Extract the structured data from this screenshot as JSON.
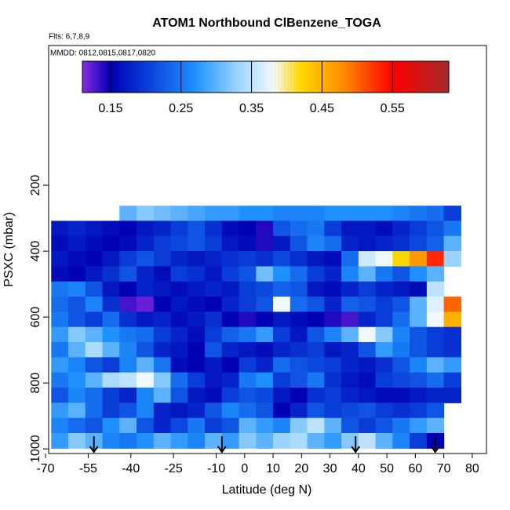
{
  "chart_data": {
    "type": "curtain",
    "title": "ATOM1 Northbound ClBenzene_TOGA",
    "subtitle": "Flts: 6,7,8,9",
    "annotation": "MMDD: 0812,0815,0817,0820",
    "xlabel": "Latitude (deg N)",
    "ylabel": "PSXC (mbar)",
    "xlim": [
      -70,
      85
    ],
    "xticks": [
      -70,
      -55,
      -40,
      -25,
      -10,
      0,
      10,
      20,
      30,
      40,
      50,
      60,
      70,
      80
    ],
    "ylim": [
      1014,
      -224
    ],
    "yticks": [
      200,
      400,
      600,
      800,
      1000
    ],
    "cbar_lim": [
      0.11,
      0.63
    ],
    "cbar_ticks": [
      0.15,
      0.25,
      0.35,
      0.45,
      0.55
    ],
    "colorscale": [
      {
        "value": 0.11,
        "color": "#8a2be2"
      },
      {
        "value": 0.15,
        "color": "#0000b4"
      },
      {
        "value": 0.2,
        "color": "#0a3cd8"
      },
      {
        "value": 0.27,
        "color": "#1e90ff"
      },
      {
        "value": 0.33,
        "color": "#9ad4ff"
      },
      {
        "value": 0.38,
        "color": "#f0f8ff"
      },
      {
        "value": 0.42,
        "color": "#ffd700"
      },
      {
        "value": 0.48,
        "color": "#ff8c00"
      },
      {
        "value": 0.55,
        "color": "#ff0000"
      },
      {
        "value": 0.63,
        "color": "#a52a2a"
      }
    ],
    "arrows": [
      -53,
      -8,
      39,
      67
    ],
    "lat_edges": [
      -68,
      -62,
      -56,
      -50,
      -44,
      -38,
      -32,
      -26,
      -20,
      -14,
      -8,
      -2,
      4,
      10,
      16,
      22,
      28,
      34,
      40,
      46,
      52,
      58,
      64,
      70,
      76
    ],
    "p_edges": [
      262,
      308,
      354,
      400,
      446,
      492,
      538,
      584,
      630,
      676,
      722,
      768,
      814,
      860,
      906,
      952,
      998
    ],
    "z": [
      [
        null,
        null,
        null,
        null,
        0.3,
        0.32,
        0.31,
        0.3,
        0.29,
        0.28,
        0.28,
        0.27,
        0.27,
        0.26,
        0.26,
        0.26,
        0.27,
        0.27,
        0.27,
        0.27,
        0.26,
        0.25,
        0.24,
        0.2
      ],
      [
        0.17,
        0.18,
        0.17,
        0.16,
        0.15,
        0.17,
        0.18,
        0.2,
        0.22,
        0.19,
        0.16,
        0.15,
        0.14,
        0.22,
        0.24,
        0.25,
        0.2,
        0.17,
        0.17,
        0.16,
        0.18,
        0.2,
        0.22,
        0.25
      ],
      [
        0.16,
        0.17,
        0.16,
        0.15,
        0.16,
        0.18,
        0.2,
        0.21,
        0.22,
        0.2,
        0.17,
        0.16,
        0.14,
        0.17,
        0.22,
        0.26,
        0.24,
        0.18,
        0.17,
        0.18,
        0.19,
        0.21,
        0.23,
        0.3
      ],
      [
        0.17,
        0.16,
        0.15,
        0.17,
        0.2,
        0.22,
        0.2,
        0.18,
        0.17,
        0.18,
        0.19,
        0.2,
        0.19,
        0.21,
        0.19,
        0.17,
        0.16,
        0.24,
        0.36,
        0.38,
        0.42,
        0.47,
        0.53,
        0.33
      ],
      [
        0.16,
        0.15,
        0.17,
        0.19,
        0.22,
        0.18,
        0.16,
        0.2,
        0.19,
        0.17,
        0.2,
        0.22,
        0.31,
        0.27,
        0.24,
        0.2,
        0.18,
        0.26,
        0.3,
        0.25,
        0.22,
        0.27,
        0.3,
        null
      ],
      [
        0.25,
        0.26,
        0.22,
        0.17,
        0.15,
        0.18,
        0.17,
        0.16,
        0.17,
        0.18,
        0.17,
        0.2,
        0.21,
        0.23,
        0.22,
        0.17,
        0.16,
        0.18,
        0.2,
        0.18,
        0.17,
        0.16,
        0.35,
        null
      ],
      [
        0.24,
        0.22,
        0.26,
        0.19,
        0.13,
        0.12,
        0.15,
        0.17,
        0.16,
        0.15,
        0.18,
        0.2,
        0.22,
        0.38,
        0.24,
        0.22,
        0.18,
        0.23,
        0.22,
        0.2,
        0.22,
        0.3,
        0.37,
        0.5
      ],
      [
        0.25,
        0.22,
        0.2,
        0.24,
        0.19,
        0.17,
        0.18,
        0.16,
        0.17,
        0.19,
        0.15,
        0.14,
        0.15,
        0.17,
        0.16,
        0.15,
        0.14,
        0.13,
        0.18,
        0.2,
        0.24,
        0.3,
        0.38,
        0.45
      ],
      [
        0.28,
        0.32,
        0.3,
        0.27,
        0.25,
        0.24,
        0.2,
        0.18,
        0.16,
        0.2,
        0.23,
        0.25,
        0.28,
        0.2,
        0.17,
        0.22,
        0.26,
        0.3,
        0.38,
        0.32,
        0.26,
        0.22,
        0.2,
        0.19
      ],
      [
        0.25,
        0.3,
        0.34,
        0.3,
        0.26,
        0.22,
        0.18,
        0.17,
        0.15,
        0.22,
        0.18,
        0.17,
        0.16,
        0.18,
        0.19,
        0.2,
        0.17,
        0.18,
        0.22,
        0.28,
        0.25,
        0.22,
        0.2,
        0.19
      ],
      [
        0.28,
        0.26,
        0.22,
        0.2,
        0.26,
        0.3,
        0.25,
        0.16,
        0.15,
        0.17,
        0.15,
        0.2,
        0.18,
        0.24,
        0.22,
        0.21,
        0.2,
        0.18,
        0.17,
        0.19,
        0.22,
        0.26,
        0.3,
        0.28
      ],
      [
        0.25,
        0.27,
        0.3,
        0.34,
        0.35,
        0.38,
        0.32,
        0.24,
        0.2,
        0.17,
        0.18,
        0.25,
        0.27,
        0.2,
        0.22,
        0.25,
        0.19,
        0.17,
        0.16,
        0.2,
        0.21,
        0.22,
        0.24,
        0.2
      ],
      [
        0.22,
        0.26,
        0.24,
        0.2,
        0.18,
        0.26,
        0.3,
        0.22,
        0.17,
        0.16,
        0.2,
        0.22,
        0.21,
        0.17,
        0.15,
        0.19,
        0.2,
        0.18,
        0.17,
        0.16,
        0.16,
        0.17,
        0.18,
        0.18
      ],
      [
        0.28,
        0.3,
        0.24,
        0.2,
        0.22,
        0.26,
        0.18,
        0.17,
        0.18,
        0.22,
        0.26,
        0.24,
        0.22,
        0.15,
        0.18,
        0.22,
        0.2,
        0.21,
        0.22,
        0.2,
        0.19,
        0.2,
        0.22,
        null
      ],
      [
        0.26,
        0.24,
        0.22,
        0.27,
        0.3,
        0.22,
        0.18,
        0.21,
        0.25,
        0.2,
        0.22,
        0.3,
        0.28,
        0.26,
        0.32,
        0.35,
        0.3,
        0.22,
        0.2,
        0.22,
        0.25,
        0.28,
        0.3,
        null
      ],
      [
        0.28,
        0.32,
        0.3,
        0.26,
        0.25,
        0.27,
        0.3,
        0.28,
        0.26,
        0.3,
        0.28,
        0.32,
        0.3,
        0.33,
        0.34,
        0.3,
        0.28,
        0.32,
        0.35,
        0.3,
        0.26,
        0.2,
        0.15,
        null
      ]
    ]
  }
}
